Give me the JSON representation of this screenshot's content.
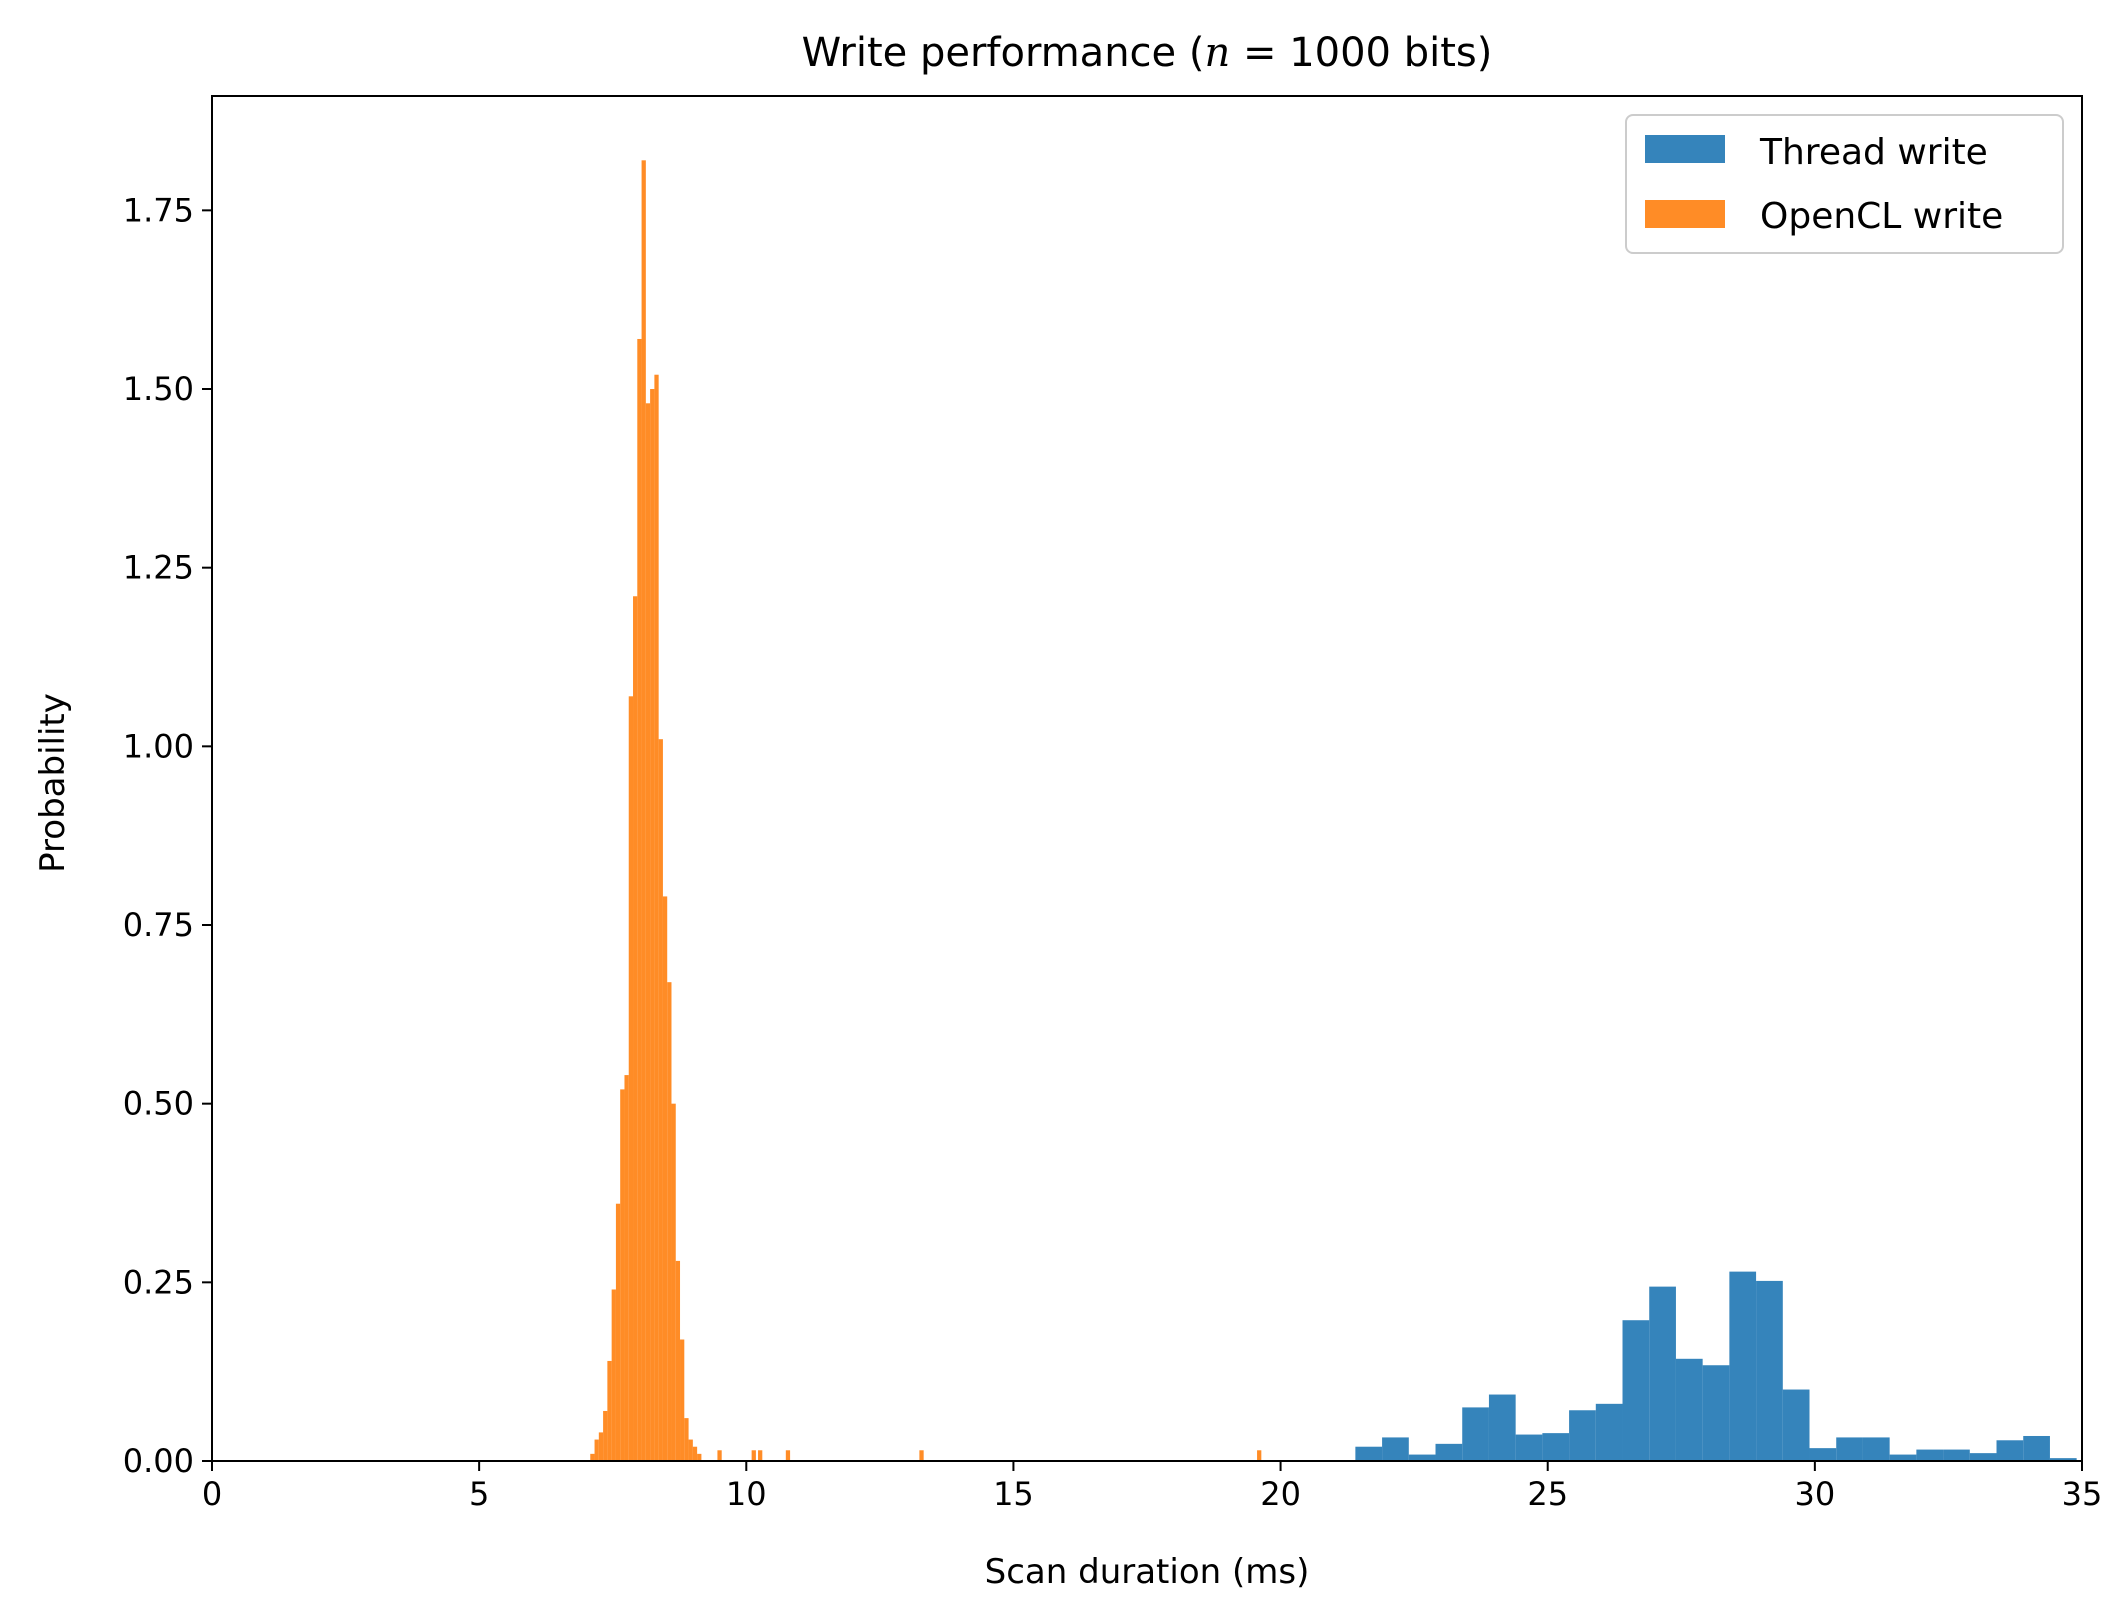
{
  "chart_data": {
    "type": "bar",
    "title_prefix": "Write performance (",
    "title_var": "n",
    "title_eq": " = ",
    "title_suffix": "1000 bits)",
    "xlabel": "Scan duration (ms)",
    "ylabel": "Probability",
    "xlim": [
      0,
      35
    ],
    "ylim": [
      0,
      1.91
    ],
    "xticks": [
      0,
      5,
      10,
      15,
      20,
      25,
      30,
      35
    ],
    "xtick_labels": [
      "0",
      "5",
      "10",
      "15",
      "20",
      "25",
      "30",
      "35"
    ],
    "yticks": [
      0,
      0.25,
      0.5,
      0.75,
      1.0,
      1.25,
      1.5,
      1.75
    ],
    "ytick_labels": [
      "0.00",
      "0.25",
      "0.50",
      "0.75",
      "1.00",
      "1.25",
      "1.50",
      "1.75"
    ],
    "grid": false,
    "legend_position": "top-right",
    "series": [
      {
        "name": "Thread write",
        "color": "#1f77b4",
        "opacity": 0.9,
        "bins": [
          [
            21.4,
            21.9,
            0.02
          ],
          [
            21.9,
            22.4,
            0.033
          ],
          [
            22.4,
            22.9,
            0.009
          ],
          [
            22.9,
            23.4,
            0.024
          ],
          [
            23.4,
            23.9,
            0.075
          ],
          [
            23.9,
            24.4,
            0.093
          ],
          [
            24.4,
            24.9,
            0.037
          ],
          [
            24.9,
            25.4,
            0.039
          ],
          [
            25.4,
            25.9,
            0.071
          ],
          [
            25.9,
            26.4,
            0.08
          ],
          [
            26.4,
            26.9,
            0.197
          ],
          [
            26.9,
            27.4,
            0.244
          ],
          [
            27.4,
            27.9,
            0.143
          ],
          [
            27.9,
            28.4,
            0.134
          ],
          [
            28.4,
            28.9,
            0.265
          ],
          [
            28.9,
            29.4,
            0.252
          ],
          [
            29.4,
            29.9,
            0.1
          ],
          [
            29.9,
            30.4,
            0.018
          ],
          [
            30.4,
            30.9,
            0.033
          ],
          [
            30.9,
            31.4,
            0.033
          ],
          [
            31.4,
            31.9,
            0.009
          ],
          [
            31.9,
            32.4,
            0.016
          ],
          [
            32.4,
            32.9,
            0.016
          ],
          [
            32.9,
            33.4,
            0.011
          ],
          [
            33.4,
            33.9,
            0.029
          ],
          [
            33.9,
            34.4,
            0.035
          ],
          [
            34.4,
            34.9,
            0.004
          ]
        ]
      },
      {
        "name": "OpenCL write",
        "color": "#ff7f0e",
        "opacity": 0.9,
        "bins": [
          [
            7.08,
            7.16,
            0.01
          ],
          [
            7.16,
            7.24,
            0.03
          ],
          [
            7.24,
            7.32,
            0.04
          ],
          [
            7.32,
            7.4,
            0.07
          ],
          [
            7.4,
            7.48,
            0.14
          ],
          [
            7.48,
            7.56,
            0.24
          ],
          [
            7.56,
            7.64,
            0.36
          ],
          [
            7.64,
            7.72,
            0.52
          ],
          [
            7.72,
            7.8,
            0.54
          ],
          [
            7.8,
            7.88,
            1.07
          ],
          [
            7.88,
            7.96,
            1.21
          ],
          [
            7.96,
            8.04,
            1.57
          ],
          [
            8.04,
            8.12,
            1.82
          ],
          [
            8.12,
            8.2,
            1.48
          ],
          [
            8.2,
            8.28,
            1.5
          ],
          [
            8.28,
            8.36,
            1.52
          ],
          [
            8.36,
            8.44,
            1.01
          ],
          [
            8.44,
            8.52,
            0.79
          ],
          [
            8.52,
            8.6,
            0.67
          ],
          [
            8.6,
            8.68,
            0.5
          ],
          [
            8.68,
            8.76,
            0.28
          ],
          [
            8.76,
            8.84,
            0.17
          ],
          [
            8.84,
            8.92,
            0.06
          ],
          [
            8.92,
            9.0,
            0.03
          ],
          [
            9.0,
            9.08,
            0.02
          ],
          [
            9.08,
            9.16,
            0.01
          ],
          [
            9.46,
            9.54,
            0.015
          ],
          [
            10.1,
            10.18,
            0.015
          ],
          [
            10.22,
            10.3,
            0.015
          ],
          [
            10.74,
            10.82,
            0.015
          ],
          [
            13.24,
            13.32,
            0.015
          ],
          [
            19.56,
            19.64,
            0.015
          ]
        ]
      }
    ]
  }
}
